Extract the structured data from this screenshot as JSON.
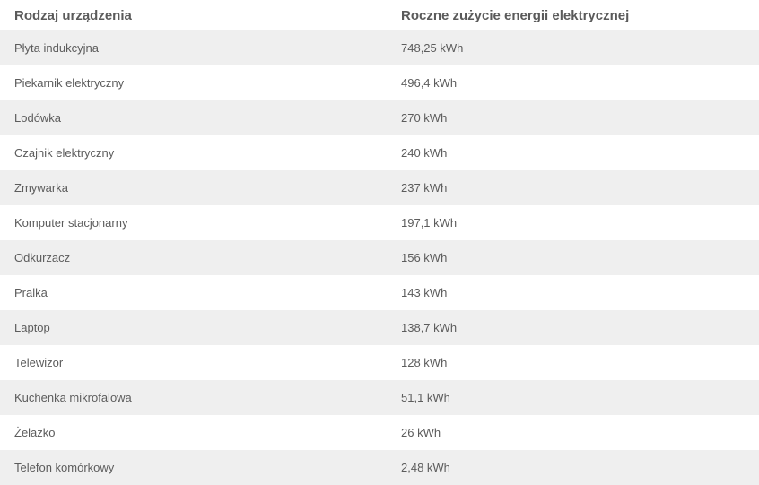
{
  "table": {
    "headers": [
      "Rodzaj urządzenia",
      "Roczne zużycie energii elektrycznej"
    ],
    "rows": [
      [
        "Płyta indukcyjna",
        "748,25 kWh"
      ],
      [
        "Piekarnik elektryczny",
        "496,4 kWh"
      ],
      [
        "Lodówka",
        "270 kWh"
      ],
      [
        "Czajnik elektryczny",
        "240 kWh"
      ],
      [
        "Zmywarka",
        "237 kWh"
      ],
      [
        "Komputer stacjonarny",
        "197,1 kWh"
      ],
      [
        "Odkurzacz",
        "156 kWh"
      ],
      [
        "Pralka",
        "143 kWh"
      ],
      [
        "Laptop",
        "138,7 kWh"
      ],
      [
        "Telewizor",
        "128 kWh"
      ],
      [
        "Kuchenka mikrofalowa",
        "51,1 kWh"
      ],
      [
        "Żelazko",
        "26 kWh"
      ],
      [
        "Telefon komórkowy",
        "2,48 kWh"
      ]
    ]
  },
  "colors": {
    "stripe": "#efefef",
    "text": "#555555",
    "background": "#ffffff"
  }
}
